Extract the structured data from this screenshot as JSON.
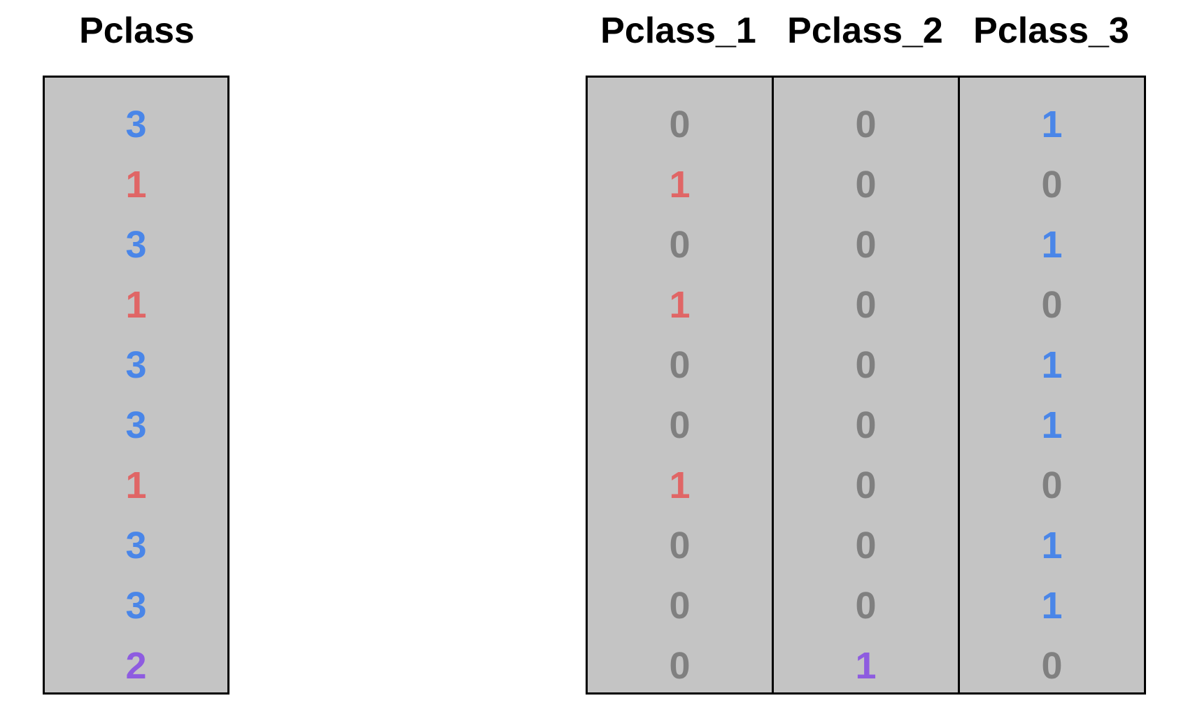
{
  "original": {
    "header": "Pclass",
    "values": [
      "3",
      "1",
      "3",
      "1",
      "3",
      "3",
      "1",
      "3",
      "3",
      "2"
    ]
  },
  "encoded": {
    "columns": [
      {
        "header": "Pclass_1",
        "values": [
          "0",
          "1",
          "0",
          "1",
          "0",
          "0",
          "1",
          "0",
          "0",
          "0"
        ]
      },
      {
        "header": "Pclass_2",
        "values": [
          "0",
          "0",
          "0",
          "0",
          "0",
          "0",
          "0",
          "0",
          "0",
          "1"
        ]
      },
      {
        "header": "Pclass_3",
        "values": [
          "1",
          "0",
          "1",
          "0",
          "1",
          "1",
          "0",
          "1",
          "1",
          "0"
        ]
      }
    ]
  },
  "colors": {
    "class_1": "#e06666",
    "class_2": "#8e5ce0",
    "class_3": "#4a86e8",
    "zero": "#808080",
    "cell_background": "#c4c4c4",
    "border": "#000000"
  }
}
